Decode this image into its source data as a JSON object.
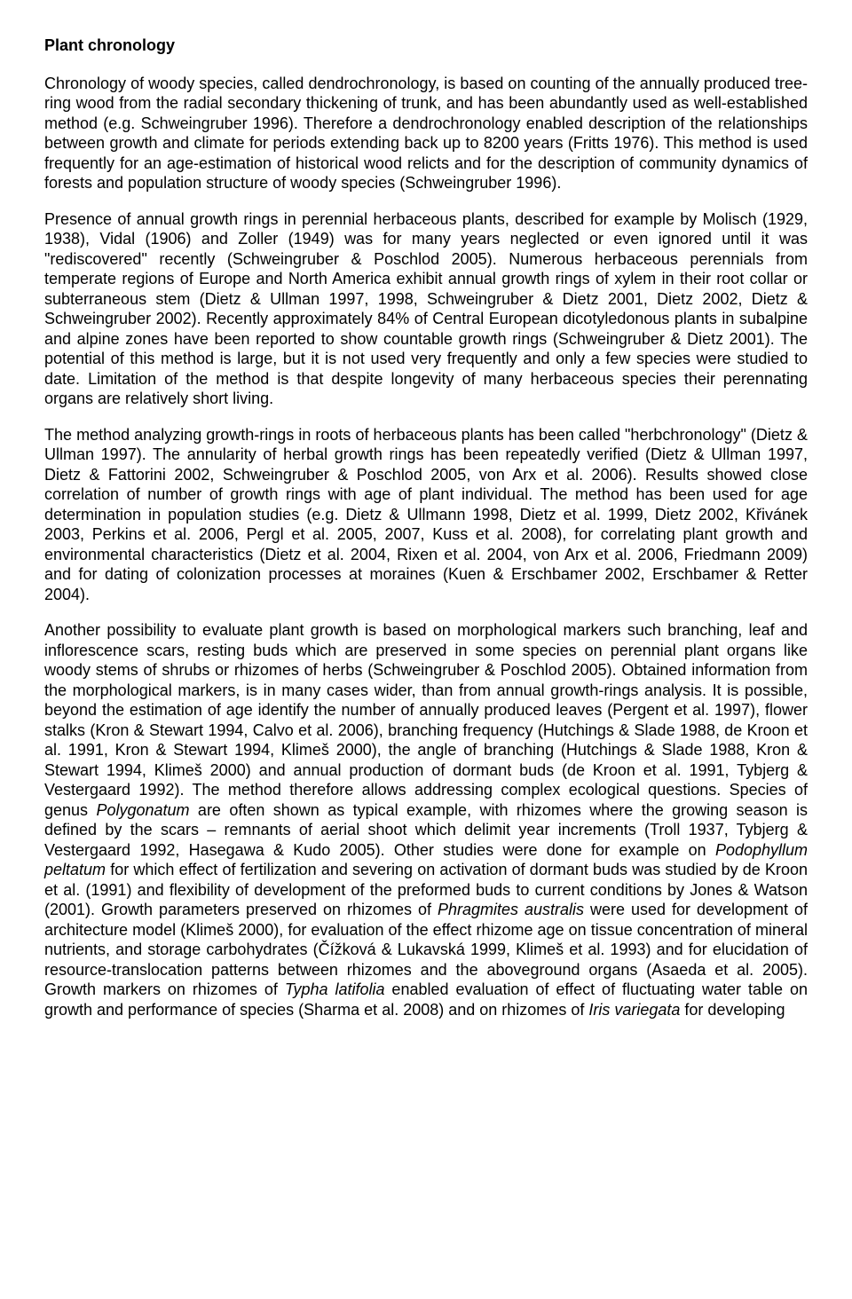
{
  "title": "Plant chronology",
  "paragraphs": [
    {
      "segments": [
        {
          "text": "Chronology of woody species, called dendrochronology, is based on counting of the annually produced tree-ring wood from the radial secondary thickening of trunk, and has been abundantly used as well-established method (e.g. Schweingruber 1996). Therefore a dendrochronology enabled description of the relationships between growth and climate for periods extending back up to 8200 years (Fritts 1976). This method is used frequently for an age-estimation of historical wood relicts and for the description of community dynamics of forests and population structure of woody species (Schweingruber 1996)."
        }
      ]
    },
    {
      "segments": [
        {
          "text": "Presence of annual growth rings in perennial herbaceous plants, described for example by Molisch (1929, 1938), Vidal (1906) and Zoller (1949) was for many years neglected or even ignored until it was \"rediscovered\" recently (Schweingruber & Poschlod 2005). Numerous herbaceous perennials from temperate regions of Europe and North America exhibit annual growth rings of xylem in their root collar or subterraneous stem (Dietz & Ullman 1997, 1998, Schweingruber & Dietz 2001, Dietz 2002, Dietz & Schweingruber 2002). Recently approximately 84% of Central European dicotyledonous plants in subalpine and alpine zones have been reported to show countable growth rings (Schweingruber & Dietz 2001). The potential of this method is large, but it is not used very frequently and only a few species were studied to date. Limitation of the method is that despite longevity of many herbaceous species their perennating organs are relatively short living."
        }
      ]
    },
    {
      "segments": [
        {
          "text": "The method analyzing growth-rings in roots of herbaceous plants has been called \"herbchronology\" (Dietz & Ullman 1997). The annularity of herbal growth rings has been repeatedly verified (Dietz & Ullman 1997, Dietz & Fattorini 2002, Schweingruber & Poschlod 2005, von Arx et al. 2006). Results showed close correlation of number of growth rings with age of plant individual. The method has been used for age determination in population studies (e.g. Dietz & Ullmann 1998, Dietz et al. 1999, Dietz 2002, Křivánek 2003, Perkins et al. 2006, Pergl et al. 2005, 2007, Kuss et al. 2008), for correlating plant growth and environmental characteristics (Dietz et al. 2004, Rixen et al. 2004, von Arx et al. 2006, Friedmann 2009) and for dating of colonization processes at moraines (Kuen & Erschbamer 2002, Erschbamer & Retter 2004)."
        }
      ]
    },
    {
      "segments": [
        {
          "text": "Another possibility to evaluate plant growth is based on morphological markers such branching, leaf and inflorescence scars, resting buds which are preserved in some species on perennial plant organs like woody stems of shrubs or rhizomes of herbs (Schweingruber & Poschlod 2005). Obtained information from the morphological markers, is in many cases wider, than from annual growth-rings analysis. It is possible, beyond the estimation of age identify the number of annually produced leaves (Pergent et al. 1997), flower stalks (Kron & Stewart 1994, Calvo et al. 2006), branching frequency (Hutchings & Slade 1988, de Kroon et al. 1991, Kron & Stewart 1994, Klimeš 2000), the angle of branching (Hutchings & Slade 1988, Kron & Stewart 1994, Klimeš 2000) and annual production of dormant buds (de Kroon et al. 1991, Tybjerg & Vestergaard 1992). The method therefore allows addressing complex ecological questions. Species of genus "
        },
        {
          "text": "Polygonatum",
          "italic": true
        },
        {
          "text": " are often shown as typical example, with rhizomes where the growing season is defined by the scars – remnants of aerial shoot which delimit year increments (Troll 1937, Tybjerg & Vestergaard 1992, Hasegawa & Kudo 2005). Other studies were done for example on "
        },
        {
          "text": "Podophyllum peltatum",
          "italic": true
        },
        {
          "text": " for which effect of fertilization and severing on activation of dormant buds was studied by de Kroon et al. (1991) and flexibility of development of the preformed buds to current conditions by Jones & Watson (2001). Growth parameters preserved on rhizomes of "
        },
        {
          "text": "Phragmites australis",
          "italic": true
        },
        {
          "text": " were used for development of architecture model (Klimeš 2000), for evaluation of the effect rhizome age on tissue concentration of mineral nutrients, and storage carbohydrates (Čížková & Lukavská 1999, Klimeš et al. 1993) and for elucidation of resource-translocation patterns between rhizomes and the aboveground organs (Asaeda et al. 2005). Growth markers on rhizomes of "
        },
        {
          "text": "Typha latifolia",
          "italic": true
        },
        {
          "text": " enabled evaluation of effect of fluctuating water table on growth and performance of species (Sharma et al. 2008) and on rhizomes of "
        },
        {
          "text": "Iris variegata",
          "italic": true
        },
        {
          "text": " for developing"
        }
      ]
    }
  ]
}
